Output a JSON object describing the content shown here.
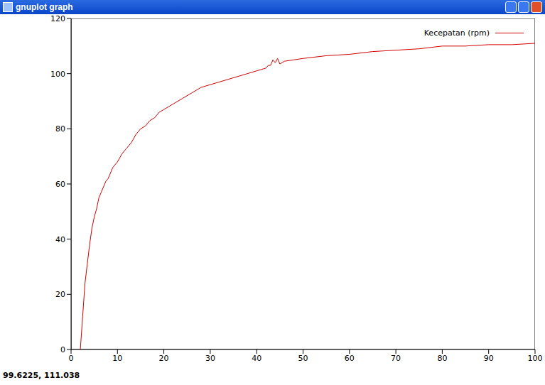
{
  "chart_data": {
    "type": "line",
    "title": "gnuplot graph",
    "annotations": [
      "99.6225, 111.038"
    ],
    "x": [
      2,
      2.5,
      3,
      3.5,
      4,
      4.5,
      5,
      5.5,
      6,
      6.5,
      7,
      7.5,
      8,
      9,
      10,
      11,
      12,
      13,
      14,
      15,
      16,
      17,
      18,
      19,
      20,
      22,
      24,
      26,
      28,
      30,
      32,
      34,
      36,
      38,
      40,
      41,
      42,
      42.5,
      43,
      43.5,
      44,
      44.5,
      45,
      46,
      48,
      50,
      55,
      60,
      65,
      70,
      75,
      80,
      85,
      90,
      95,
      100
    ],
    "series": [
      {
        "name": "Kecepatan (rpm)",
        "color": "#d00000",
        "values": [
          0,
          12,
          24,
          31,
          38,
          44,
          48,
          51,
          55,
          57,
          59,
          61,
          62,
          66,
          68,
          71,
          73,
          75,
          78,
          80,
          81,
          83,
          84,
          86,
          87,
          89,
          91,
          93,
          95,
          96,
          97,
          98,
          99,
          100,
          101,
          101.5,
          102,
          103,
          103,
          105,
          104,
          105.5,
          103.5,
          104.5,
          105,
          105.5,
          106.5,
          107,
          108,
          108.5,
          109,
          110,
          110,
          110.5,
          110.5,
          111
        ]
      }
    ],
    "xlim": [
      0,
      100
    ],
    "xticks": [
      0,
      10,
      20,
      30,
      40,
      50,
      60,
      70,
      80,
      90,
      100
    ],
    "ylim": [
      0,
      120
    ],
    "yticks": [
      0,
      20,
      40,
      60,
      80,
      100,
      120
    ],
    "grid": false,
    "legend": "top right"
  }
}
